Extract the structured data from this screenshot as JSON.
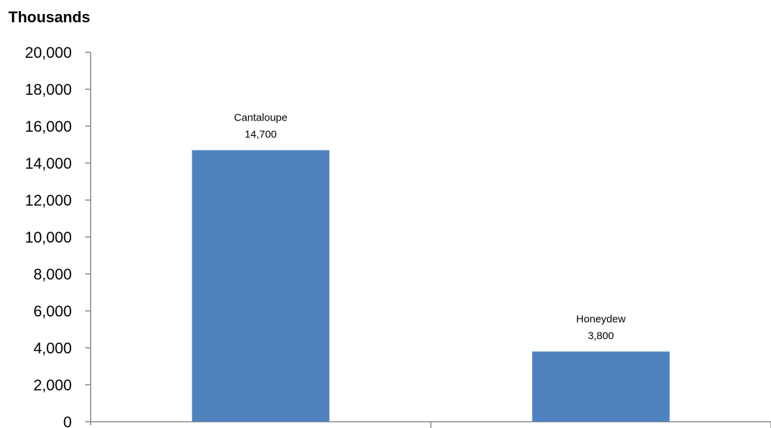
{
  "chart_data": {
    "type": "bar",
    "unit_label": "Thousands",
    "categories": [
      "Cantaloupe",
      "Honeydew"
    ],
    "values": [
      14700,
      3800
    ],
    "value_labels": [
      "14,700",
      "3,800"
    ],
    "ylim": [
      0,
      20000
    ],
    "yticks": [
      0,
      2000,
      4000,
      6000,
      8000,
      10000,
      12000,
      14000,
      16000,
      18000,
      20000
    ],
    "ytick_labels": [
      "0",
      "2,000",
      "4,000",
      "6,000",
      "8,000",
      "10,000",
      "12,000",
      "14,000",
      "16,000",
      "18,000",
      "20,000"
    ],
    "grid": false,
    "legend": "none",
    "bar_color": "#4f81bd",
    "axis_color": "#868686",
    "text_color": "#000000"
  }
}
